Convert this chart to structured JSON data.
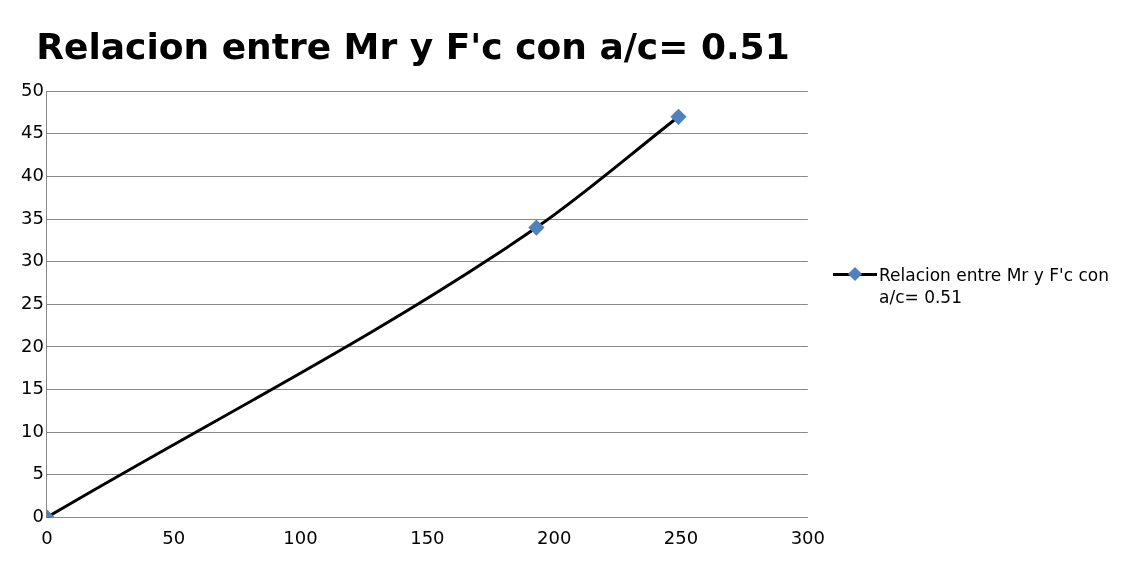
{
  "chart_data": {
    "type": "line",
    "title": "Relacion entre Mr y F'c con a/c= 0.51",
    "series": [
      {
        "name": "Relacion entre Mr y F'c con a/c= 0.51",
        "color": "#000000",
        "colors": [
          "#4f81bd",
          "#4f81bd",
          "#4f81bd"
        ],
        "x": [
          0,
          193,
          249
        ],
        "values": [
          0,
          34,
          47
        ]
      }
    ],
    "xlim": [
      0,
      300
    ],
    "xticks": [
      0,
      50,
      100,
      150,
      200,
      250,
      300
    ],
    "ylim": [
      0,
      50
    ],
    "yticks": [
      0,
      5,
      10,
      15,
      20,
      25,
      30,
      35,
      40,
      45,
      50
    ],
    "grid": "y",
    "legend": "right",
    "marker": "diamond",
    "line_style": "solid"
  }
}
